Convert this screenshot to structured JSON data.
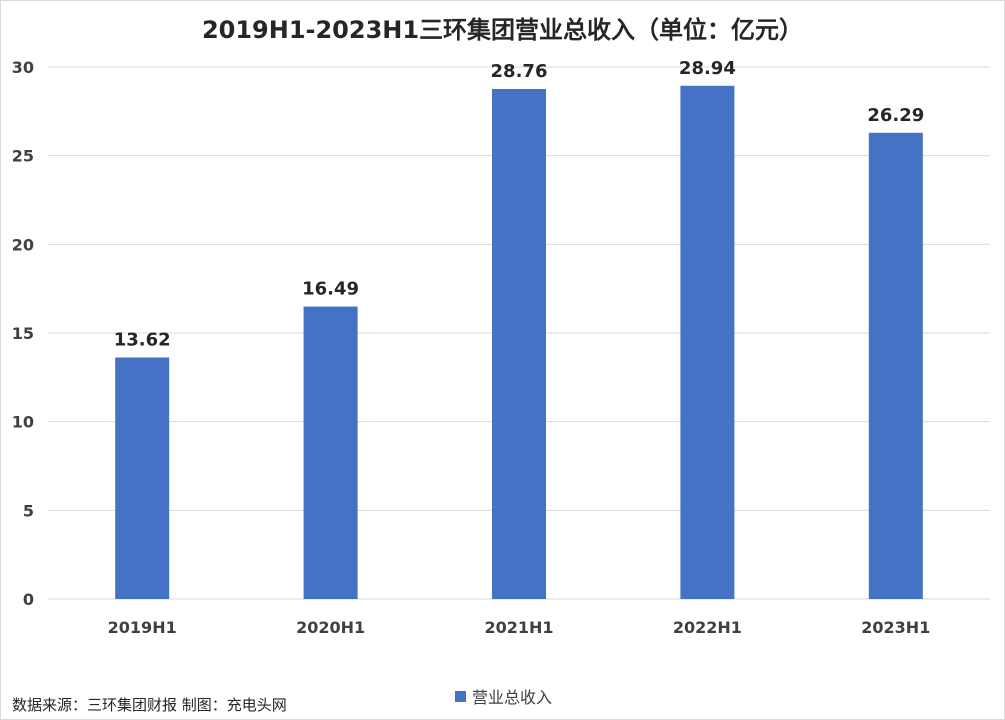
{
  "chart_data": {
    "type": "bar",
    "title": "2019H1-2023H1三环集团营业总收入（单位：亿元）",
    "categories": [
      "2019H1",
      "2020H1",
      "2021H1",
      "2022H1",
      "2023H1"
    ],
    "series": [
      {
        "name": "营业总收入",
        "values": [
          13.62,
          16.49,
          28.76,
          28.94,
          26.29
        ]
      }
    ],
    "data_labels": [
      "13.62",
      "16.49",
      "28.76",
      "28.94",
      "26.29"
    ],
    "ylim": [
      0,
      30
    ],
    "yticks": [
      0,
      5,
      10,
      15,
      20,
      25,
      30
    ],
    "grid": true,
    "legend_position": "bottom",
    "colors": {
      "bar": "#4472C4",
      "grid": "#d9d9d9",
      "text": "#404040"
    }
  },
  "source_note": "数据来源：三环集团财报  制图：充电头网"
}
